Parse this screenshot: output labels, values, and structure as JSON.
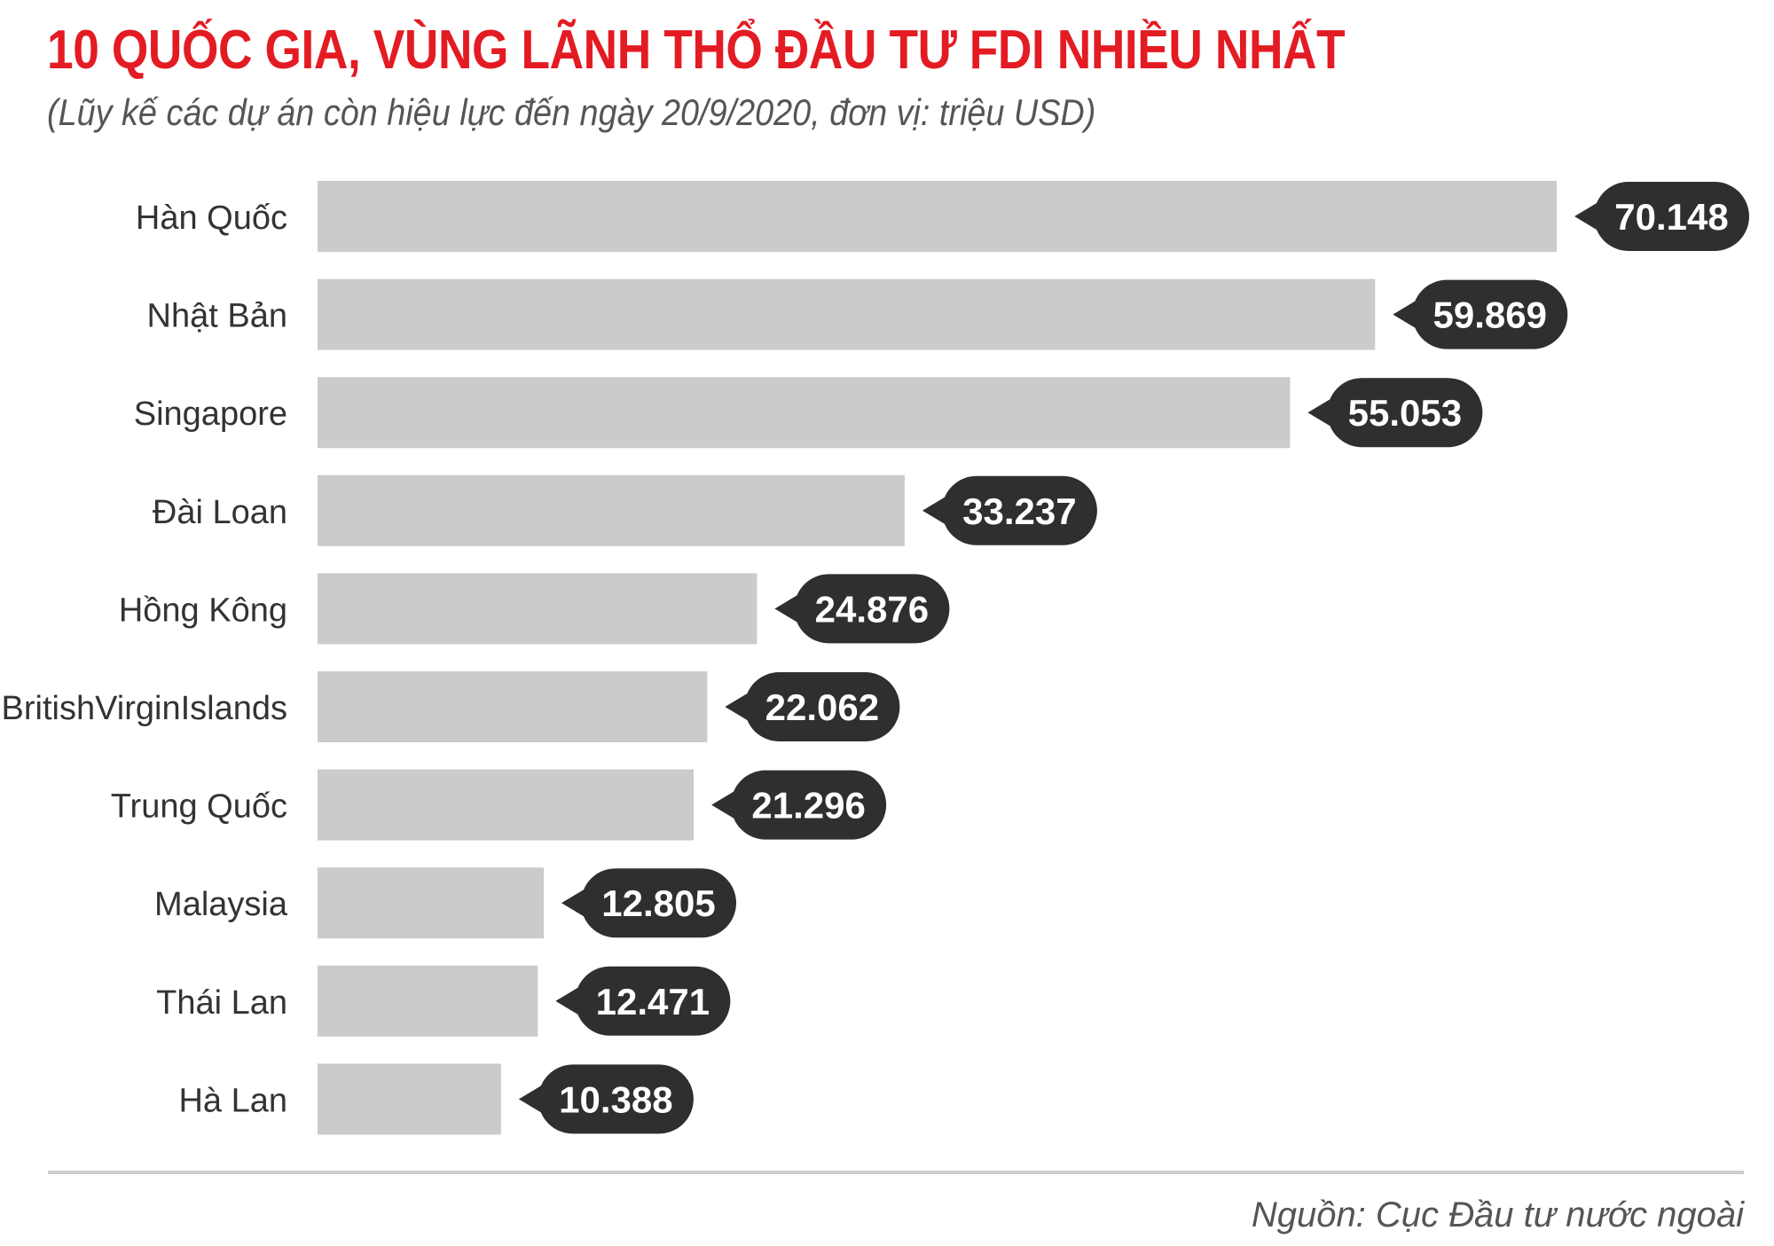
{
  "header": {
    "title": "10 QUỐC GIA, VÙNG LÃNH THỔ ĐẦU TƯ FDI NHIỀU NHẤT",
    "subtitle": "(Lũy kế các dự án còn hiệu lực đến ngày 20/9/2020, đơn vị: triệu USD)"
  },
  "footer": {
    "source": "Nguồn: Cục Đầu tư nước ngoài"
  },
  "colors": {
    "title": "#e31b23",
    "bar": "#cccbcc",
    "label_bubble": "#2f2f2f",
    "label_text": "#ffffff",
    "category_text": "#333333",
    "divider": "#cccccc"
  },
  "chart_data": {
    "type": "bar",
    "orientation": "horizontal",
    "title": "10 QUỐC GIA, VÙNG LÃNH THỔ ĐẦU TƯ FDI NHIỀU NHẤT",
    "subtitle": "(Lũy kế các dự án còn hiệu lực đến ngày 20/9/2020, đơn vị: triệu USD)",
    "xlabel": "",
    "ylabel": "",
    "grid": false,
    "xlim": [
      0,
      70148
    ],
    "categories": [
      "Hàn Quốc",
      "Nhật Bản",
      "Singapore",
      "Đài Loan",
      "Hồng Kông",
      "BritishVirginIslands",
      "Trung Quốc",
      "Malaysia",
      "Thái Lan",
      "Hà Lan"
    ],
    "values": [
      70148,
      59869,
      55053,
      33237,
      24876,
      22062,
      21296,
      12805,
      12471,
      10388
    ],
    "value_labels": [
      "70.148",
      "59.869",
      "55.053",
      "33.237",
      "24.876",
      "22.062",
      "21.296",
      "12.805",
      "12.471",
      "10.388"
    ]
  }
}
